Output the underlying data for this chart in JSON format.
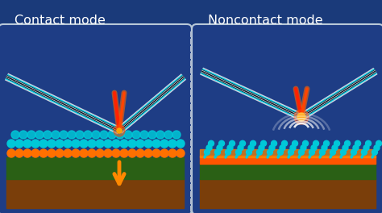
{
  "bg_color": "#1a3a7a",
  "title_left": "Contact mode",
  "title_right": "Noncontact mode",
  "title_color": "#ffffff",
  "title_fontsize": 11.5,
  "panel_border_color": "#b8c8d8",
  "panel_face_color": "#1e3d85",
  "cantilever_layers": [
    [
      7,
      "#ccd4e0"
    ],
    [
      5,
      "#00c8e0"
    ],
    [
      3,
      "#0a1520"
    ],
    [
      2,
      "#d8e0ec"
    ],
    [
      1,
      "#0a1520"
    ]
  ],
  "laser_colors": [
    "#ff1800",
    "#ff4400",
    "#ff7700"
  ],
  "arrow_color": "#ff8800",
  "cyan_dot_color": "#00c8d8",
  "orange_dot_color": "#ff7000",
  "green_layer_color": "#2a6015",
  "brown_layer_color": "#7a3e0a",
  "orange_stripe_color": "#ff5500",
  "wave_color": "#ffffff",
  "divider_color": "#b0bcd0",
  "fig_width": 4.74,
  "fig_height": 2.64,
  "dpi": 100
}
